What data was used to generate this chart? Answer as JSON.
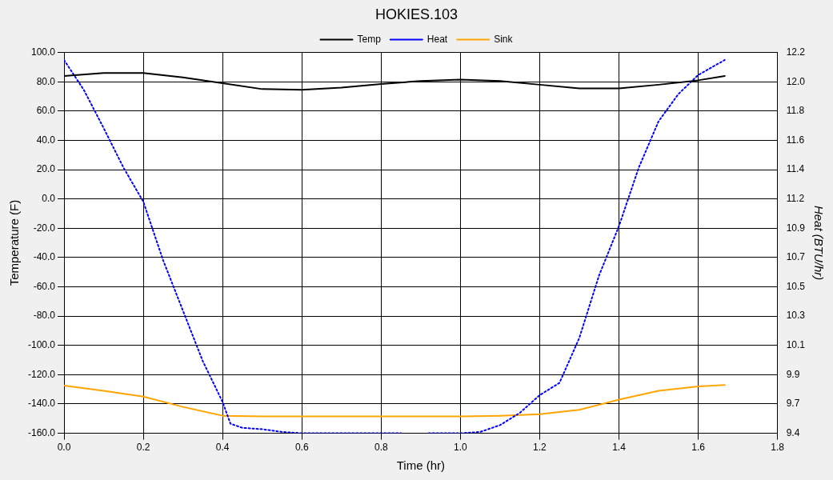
{
  "chart_data": {
    "type": "line",
    "title": "HOKIES.103",
    "xlabel": "Time (hr)",
    "ylabel": "Temperature (F)",
    "y2label": "Heat (BTU/hr)",
    "x": [
      0,
      0.1,
      0.2,
      0.3,
      0.4,
      0.5,
      0.6,
      0.7,
      0.8,
      0.9,
      1.0,
      1.1,
      1.2,
      1.3,
      1.4,
      1.5,
      1.6,
      1.667
    ],
    "series": [
      {
        "name": "Temp",
        "color": "#000000",
        "values": [
          84,
          86,
          86,
          83,
          79,
          75,
          74.5,
          76,
          78.5,
          80.5,
          81.5,
          80.5,
          78,
          75.5,
          75.5,
          78,
          81,
          84
        ]
      },
      {
        "name": "Heat",
        "color": "#0000ff",
        "axis": "y2",
        "line_style": "dotted",
        "x": [
          0,
          0.05,
          0.1,
          0.15,
          0.2,
          0.25,
          0.3,
          0.35,
          0.4,
          0.42,
          0.45,
          0.5,
          0.55,
          0.6,
          0.7,
          0.8,
          0.85,
          0.88,
          0.92,
          0.95,
          1.0,
          1.05,
          1.1,
          1.15,
          1.2,
          1.25,
          1.3,
          1.35,
          1.4,
          1.45,
          1.5,
          1.55,
          1.6,
          1.667
        ],
        "values": [
          12.18,
          11.96,
          11.68,
          11.39,
          11.14,
          10.71,
          10.34,
          9.97,
          9.67,
          9.51,
          9.48,
          9.47,
          9.45,
          9.44,
          9.44,
          9.44,
          9.44,
          null,
          9.44,
          9.44,
          9.44,
          9.45,
          9.5,
          9.59,
          9.72,
          9.81,
          10.14,
          10.6,
          10.96,
          11.39,
          11.73,
          11.93,
          12.07,
          12.18
        ]
      },
      {
        "name": "Sink",
        "color": "#ffa500",
        "values": [
          -127.5,
          -131,
          -135,
          -142,
          -148,
          -148.5,
          -148.5,
          -148.5,
          -148.5,
          -148.5,
          -148.5,
          -148,
          -147,
          -144,
          -137,
          -131,
          -128,
          -127
        ]
      }
    ],
    "xlim": [
      0,
      1.8
    ],
    "xticks": [
      {
        "value": 0,
        "label": "0.0"
      },
      {
        "value": 0.2,
        "label": "0.2"
      },
      {
        "value": 0.4,
        "label": "0.4"
      },
      {
        "value": 0.6,
        "label": "0.6"
      },
      {
        "value": 0.8,
        "label": "0.8"
      },
      {
        "value": 1.0,
        "label": "1.0"
      },
      {
        "value": 1.2,
        "label": "1.2"
      },
      {
        "value": 1.4,
        "label": "1.4"
      },
      {
        "value": 1.6,
        "label": "1.6"
      },
      {
        "value": 1.8,
        "label": "1.8"
      }
    ],
    "ylim": [
      -160,
      100
    ],
    "yticks": [
      {
        "value": -160,
        "label": "-160.0"
      },
      {
        "value": -140,
        "label": "-140.0"
      },
      {
        "value": -120,
        "label": "-120.0"
      },
      {
        "value": -100,
        "label": "-100.0"
      },
      {
        "value": -80,
        "label": "-80.0"
      },
      {
        "value": -60,
        "label": "-60.0"
      },
      {
        "value": -40,
        "label": "-40.0"
      },
      {
        "value": -20,
        "label": "-20.0"
      },
      {
        "value": 0,
        "label": "0.0"
      },
      {
        "value": 20,
        "label": "20.0"
      },
      {
        "value": 40,
        "label": "40.0"
      },
      {
        "value": 60,
        "label": "60.0"
      },
      {
        "value": 80,
        "label": "80.0"
      },
      {
        "value": 100,
        "label": "100.0"
      }
    ],
    "y2lim": [
      9.44,
      12.235
    ],
    "y2ticks": [
      {
        "value": 9.44,
        "label": "9.4"
      },
      {
        "value": 9.655,
        "label": "9.7"
      },
      {
        "value": 9.87,
        "label": "9.9"
      },
      {
        "value": 10.085,
        "label": "10.1"
      },
      {
        "value": 10.3,
        "label": "10.3"
      },
      {
        "value": 10.515,
        "label": "10.5"
      },
      {
        "value": 10.73,
        "label": "10.7"
      },
      {
        "value": 10.945,
        "label": "10.9"
      },
      {
        "value": 11.16,
        "label": "11.2"
      },
      {
        "value": 11.375,
        "label": "11.4"
      },
      {
        "value": 11.59,
        "label": "11.6"
      },
      {
        "value": 11.805,
        "label": "11.8"
      },
      {
        "value": 12.02,
        "label": "12.0"
      },
      {
        "value": 12.235,
        "label": "12.2"
      }
    ],
    "grid": true,
    "legend": "top",
    "marker": "none"
  }
}
